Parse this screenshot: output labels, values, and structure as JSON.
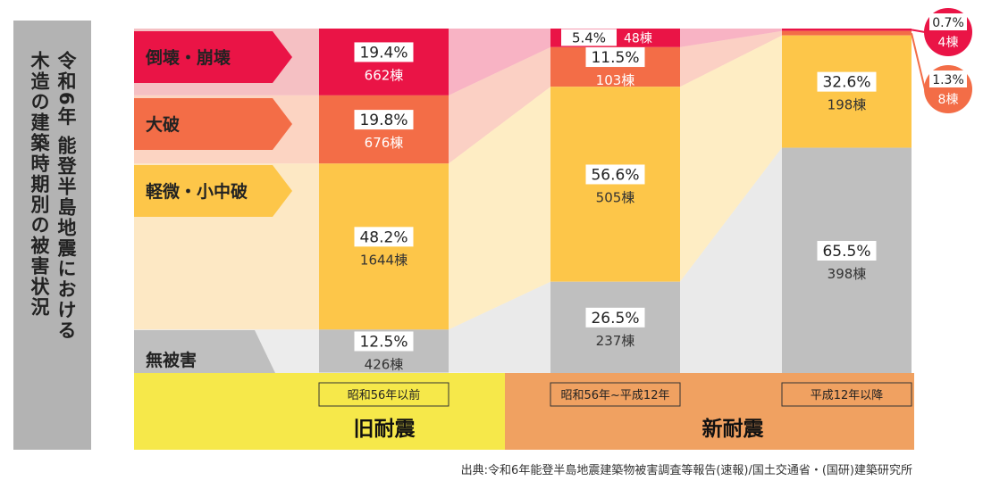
{
  "side_title": {
    "line1": "令和6年 能登半島地震における",
    "line2": "木造の建築時期別の被害状況"
  },
  "legend": [
    {
      "label": "倒壊・崩壊",
      "color": "#ea1446"
    },
    {
      "label": "大破",
      "color": "#f36d47"
    },
    {
      "label": "軽微・小中破",
      "color": "#fdc649"
    },
    {
      "label": "無被害",
      "color": "#bfbfbf"
    }
  ],
  "colors": {
    "old_band": "#f6e84a",
    "new_band": "#f0a161"
  },
  "groups": {
    "old": "旧耐震",
    "new": "新耐震"
  },
  "chart_data": {
    "type": "bar",
    "stacked": "percent",
    "categories": [
      "昭和56年以前",
      "昭和56年~平成12年",
      "平成12年以降"
    ],
    "series": [
      {
        "name": "倒壊・崩壊",
        "values": [
          19.4,
          5.4,
          0.7
        ],
        "counts": [
          "662棟",
          "48棟",
          "4棟"
        ]
      },
      {
        "name": "大破",
        "values": [
          19.8,
          11.5,
          1.3
        ],
        "counts": [
          "676棟",
          "103棟",
          "8棟"
        ]
      },
      {
        "name": "軽微・小中破",
        "values": [
          48.2,
          56.6,
          32.6
        ],
        "counts": [
          "1644棟",
          "505棟",
          "198棟"
        ]
      },
      {
        "name": "無被害",
        "values": [
          12.5,
          26.5,
          65.5
        ],
        "counts": [
          "426棟",
          "237棟",
          "398棟"
        ]
      }
    ],
    "value_suffix": "%"
  },
  "source": "出典:令和6年能登半島地震建築物被害調査等報告(速報)/国土交通省・(国研)建築研究所"
}
